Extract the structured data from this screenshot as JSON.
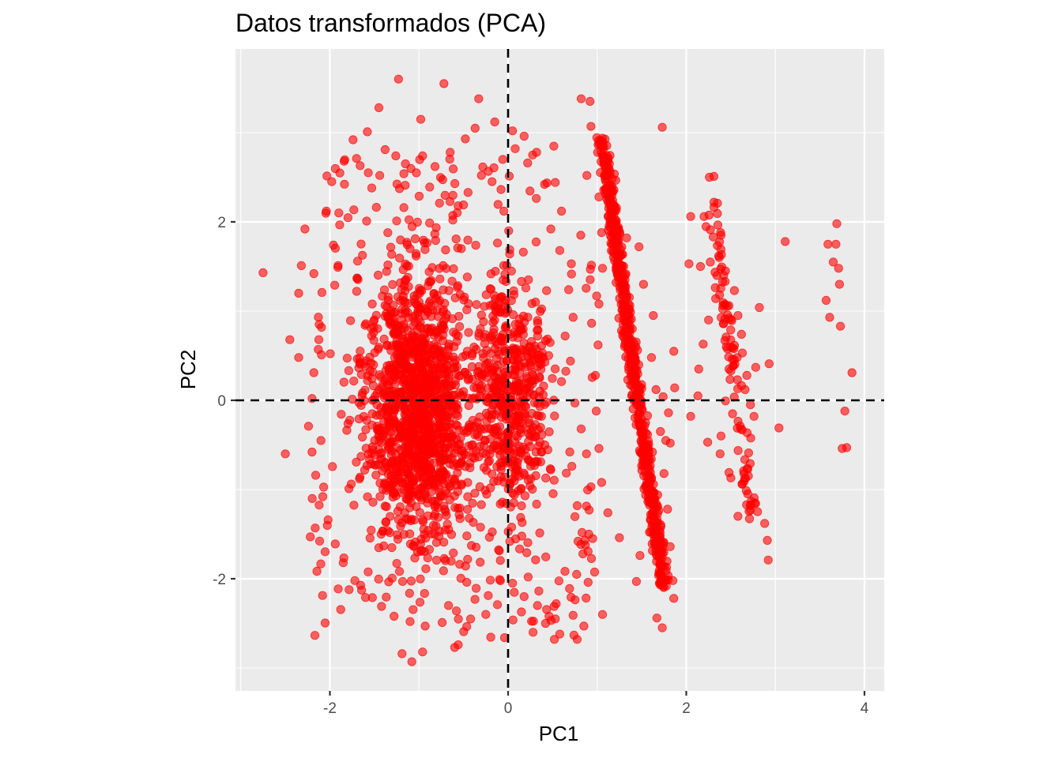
{
  "chart_data": {
    "type": "scatter",
    "title": "Datos transformados (PCA)",
    "xlabel": "PC1",
    "ylabel": "PC2",
    "xlim": [
      -3.05,
      4.22
    ],
    "ylim": [
      -3.25,
      3.9
    ],
    "x_ticks": [
      -2,
      0,
      2,
      4
    ],
    "y_ticks": [
      -2,
      0,
      2
    ],
    "x_tick_labels": [
      "-2",
      "0",
      "2",
      "4"
    ],
    "y_tick_labels": [
      "-2",
      "0",
      "2"
    ],
    "reference_lines": {
      "vertical_x": 0,
      "horizontal_y": 0,
      "style": "dashed",
      "color": "#000000"
    },
    "grid": true,
    "panel_background": "#ebebeb",
    "point_color": "#ff0000",
    "point_alpha": 0.6,
    "series": [
      {
        "points": [
          [
            -2.75,
            1.43
          ],
          [
            -2.45,
            0.68
          ],
          [
            -2.35,
            1.2
          ],
          [
            -2.35,
            0.48
          ],
          [
            -2.22,
            -1.53
          ],
          [
            -2.1,
            -0.45
          ],
          [
            -2.5,
            -0.6
          ],
          [
            -0.72,
            3.55
          ],
          [
            -1.23,
            3.6
          ],
          [
            -0.33,
            3.38
          ],
          [
            -1.45,
            3.28
          ],
          [
            -0.98,
            3.15
          ],
          [
            0.82,
            3.38
          ],
          [
            0.92,
            3.35
          ],
          [
            1.73,
            3.06
          ],
          [
            0.93,
            3.07
          ],
          [
            -1.26,
            0.81
          ],
          [
            -0.96,
            -2.82
          ],
          [
            -1.08,
            -2.93
          ],
          [
            -1.19,
            -2.84
          ],
          [
            -0.6,
            -2.77
          ],
          [
            -0.56,
            -2.74
          ],
          [
            -0.04,
            -2.66
          ],
          [
            0.28,
            -2.6
          ],
          [
            0.42,
            -2.5
          ],
          [
            0.52,
            -2.68
          ],
          [
            0.58,
            -2.62
          ],
          [
            0.73,
            -2.41
          ],
          [
            1.06,
            -2.4
          ],
          [
            1.73,
            -2.55
          ],
          [
            1.67,
            -2.44
          ],
          [
            3.11,
            1.78
          ],
          [
            3.57,
            1.12
          ],
          [
            3.61,
            0.93
          ],
          [
            3.65,
            1.55
          ],
          [
            3.59,
            1.75
          ],
          [
            3.68,
            1.75
          ],
          [
            3.69,
            1.98
          ],
          [
            3.71,
            1.48
          ],
          [
            3.72,
            1.3
          ],
          [
            3.73,
            0.83
          ],
          [
            3.78,
            -0.12
          ],
          [
            3.8,
            -0.53
          ],
          [
            3.75,
            -0.54
          ],
          [
            3.86,
            0.31
          ],
          [
            3.04,
            -0.31
          ],
          [
            2.88,
            -1.38
          ],
          [
            2.91,
            -1.57
          ],
          [
            2.92,
            -1.79
          ],
          [
            2.93,
            0.41
          ],
          [
            2.82,
            1.04
          ],
          [
            2.78,
            0.37
          ],
          [
            2.26,
            2.5
          ],
          [
            2.31,
            2.51
          ],
          [
            2.35,
            2.21
          ],
          [
            2.31,
            2.22
          ],
          [
            2.39,
            1.85
          ],
          [
            2.37,
            1.6
          ],
          [
            2.44,
            1.45
          ],
          [
            2.27,
            1.55
          ],
          [
            2.16,
            1.5
          ],
          [
            2.2,
            2.06
          ],
          [
            2.05,
            2.06
          ],
          [
            2.03,
            1.53
          ],
          [
            1.86,
            0.55
          ],
          [
            1.87,
            0.14
          ],
          [
            1.8,
            -0.14
          ],
          [
            1.77,
            -0.45
          ],
          [
            1.82,
            -0.48
          ],
          [
            1.74,
            0.04
          ],
          [
            2.24,
            -0.47
          ],
          [
            2.39,
            -0.4
          ],
          [
            2.38,
            -0.6
          ],
          [
            2.5,
            -0.87
          ],
          [
            2.48,
            -0.81
          ],
          [
            2.69,
            -1.05
          ],
          [
            2.73,
            -1.13
          ],
          [
            2.58,
            -1.3
          ],
          [
            2.72,
            -1.23
          ],
          [
            -2.12,
            0.85
          ],
          [
            -2.18,
            1.42
          ],
          [
            -2.32,
            1.51
          ],
          [
            -2.28,
            1.92
          ],
          [
            -2.04,
            2.12
          ],
          [
            -1.98,
            2.45
          ],
          [
            -1.74,
            2.92
          ],
          [
            -1.84,
            2.68
          ],
          [
            -1.66,
            2.63
          ],
          [
            -1.58,
            3.01
          ],
          [
            -1.38,
            2.81
          ],
          [
            -1.26,
            2.74
          ],
          [
            -1.17,
            2.54
          ],
          [
            -1.03,
            2.55
          ],
          [
            -0.88,
            2.39
          ],
          [
            -0.77,
            2.21
          ],
          [
            -0.62,
            2.02
          ],
          [
            -0.5,
            2.19
          ],
          [
            -0.45,
            2.33
          ],
          [
            -0.3,
            2.52
          ],
          [
            -0.18,
            2.45
          ],
          [
            -0.06,
            2.7
          ],
          [
            0.08,
            2.82
          ],
          [
            0.22,
            2.66
          ],
          [
            0.41,
            2.42
          ],
          [
            0.6,
            2.12
          ],
          [
            0.48,
            1.92
          ],
          [
            0.58,
            1.68
          ],
          [
            0.71,
            1.53
          ],
          [
            0.68,
            1.24
          ],
          [
            0.73,
            0.93
          ],
          [
            0.64,
            0.72
          ],
          [
            0.7,
            0.44
          ],
          [
            0.6,
            0.21
          ],
          [
            0.75,
            -0.03
          ],
          [
            0.82,
            -0.32
          ],
          [
            0.88,
            -0.6
          ],
          [
            0.93,
            -0.97
          ],
          [
            0.91,
            -1.23
          ],
          [
            0.95,
            -1.55
          ],
          [
            0.84,
            -1.72
          ],
          [
            0.77,
            -1.95
          ],
          [
            0.69,
            -2.11
          ],
          [
            0.54,
            -2.28
          ],
          [
            0.46,
            -2.42
          ],
          [
            0.33,
            -2.3
          ],
          [
            0.18,
            -2.2
          ],
          [
            0.05,
            -2.05
          ],
          [
            -0.12,
            -2.29
          ],
          [
            -0.25,
            -2.4
          ],
          [
            -0.42,
            -2.45
          ],
          [
            -0.58,
            -2.36
          ],
          [
            -0.74,
            -2.49
          ],
          [
            -0.93,
            -2.53
          ],
          [
            -1.1,
            -2.48
          ],
          [
            -1.28,
            -2.42
          ],
          [
            -1.42,
            -2.31
          ],
          [
            -1.6,
            -2.21
          ],
          [
            -1.72,
            -2.02
          ],
          [
            -1.85,
            -1.82
          ],
          [
            -1.94,
            -1.61
          ],
          [
            -2.02,
            -1.34
          ],
          [
            -2.08,
            -1.08
          ],
          [
            -2.16,
            -0.84
          ],
          [
            -2.2,
            -0.58
          ],
          [
            -2.24,
            -0.29
          ],
          [
            -2.2,
            0.02
          ],
          [
            -2.18,
            0.31
          ],
          [
            -2.13,
            0.57
          ],
          [
            -1.96,
            1.74
          ],
          [
            -1.9,
            2.1
          ],
          [
            -1.53,
            2.38
          ],
          [
            -1.44,
            2.52
          ],
          [
            -0.96,
            2.74
          ],
          [
            -0.82,
            2.62
          ],
          [
            -0.65,
            2.78
          ],
          [
            -0.48,
            2.93
          ],
          [
            -0.37,
            3.05
          ],
          [
            -0.15,
            3.12
          ],
          [
            0.05,
            3.02
          ],
          [
            0.18,
            2.96
          ],
          [
            0.32,
            2.78
          ],
          [
            1.33,
            1.82
          ],
          [
            1.47,
            1.72
          ],
          [
            1.52,
            1.3
          ],
          [
            1.63,
            0.95
          ],
          [
            1.61,
            0.48
          ],
          [
            1.66,
            0.12
          ],
          [
            1.71,
            -0.35
          ],
          [
            1.75,
            -0.82
          ],
          [
            1.79,
            -1.22
          ],
          [
            1.82,
            -1.64
          ],
          [
            1.85,
            -2.02
          ],
          [
            1.86,
            -2.22
          ],
          [
            1.44,
            -2.03
          ],
          [
            1.48,
            -1.74
          ],
          [
            1.25,
            -1.54
          ],
          [
            1.12,
            -1.26
          ],
          [
            1.05,
            -0.92
          ],
          [
            1.02,
            -0.54
          ],
          [
            0.99,
            -0.12
          ],
          [
            0.98,
            0.28
          ],
          [
            1.01,
            0.62
          ],
          [
            1.02,
            1.08
          ],
          [
            1.06,
            1.48
          ],
          [
            1.05,
            1.88
          ],
          [
            1.02,
            2.28
          ],
          [
            2.54,
            1.23
          ],
          [
            2.58,
            0.95
          ],
          [
            2.62,
            0.74
          ],
          [
            2.63,
            0.53
          ],
          [
            2.68,
            0.28
          ],
          [
            2.66,
            0.12
          ],
          [
            2.72,
            -0.05
          ],
          [
            2.76,
            -0.18
          ],
          [
            2.61,
            -0.32
          ],
          [
            2.52,
            -0.15
          ],
          [
            2.48,
            0.35
          ],
          [
            2.45,
            0.6
          ],
          [
            2.42,
            0.86
          ],
          [
            2.33,
            1.14
          ],
          [
            2.25,
            0.9
          ],
          [
            2.19,
            0.63
          ],
          [
            2.14,
            0.35
          ],
          [
            2.13,
            0.05
          ],
          [
            2.05,
            -0.18
          ]
        ]
      }
    ]
  }
}
